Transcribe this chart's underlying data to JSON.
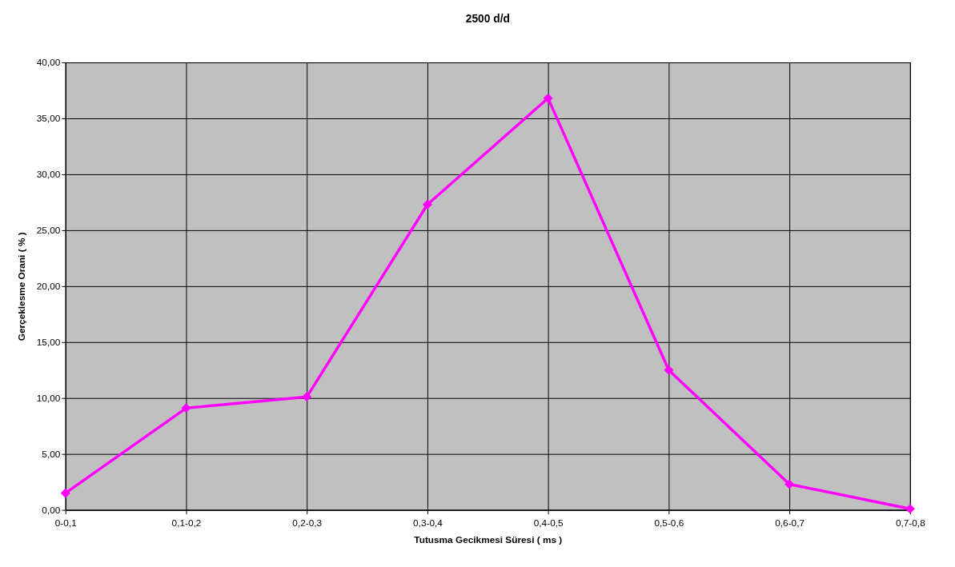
{
  "chart_data": {
    "type": "line",
    "title": "2500 d/d",
    "xlabel": "Tutusma Gecikmesi Süresi ( ms )",
    "ylabel": "Gerçeklesme Orani ( % )",
    "categories": [
      "0-0,1",
      "0,1-0,2",
      "0,2-0,3",
      "0,3-0,4",
      "0,4-0,5",
      "0,5-0,6",
      "0,6-0,7",
      "0,7-0,8"
    ],
    "series": [
      {
        "color": "#ff00ff",
        "values": [
          1.5,
          9.1,
          10.1,
          27.3,
          36.8,
          12.5,
          2.3,
          0.1
        ]
      }
    ],
    "ylim": [
      0,
      40
    ],
    "yticks": [
      {
        "value": 0,
        "label": "0,00"
      },
      {
        "value": 5,
        "label": "5,00"
      },
      {
        "value": 10,
        "label": "10,00"
      },
      {
        "value": 15,
        "label": "15,00"
      },
      {
        "value": 20,
        "label": "20,00"
      },
      {
        "value": 25,
        "label": "25,00"
      },
      {
        "value": 30,
        "label": "30,00"
      },
      {
        "value": 35,
        "label": "35,00"
      },
      {
        "value": 40,
        "label": "40,00"
      }
    ],
    "grid": true,
    "marker": "diamond",
    "line_style": "solid"
  }
}
